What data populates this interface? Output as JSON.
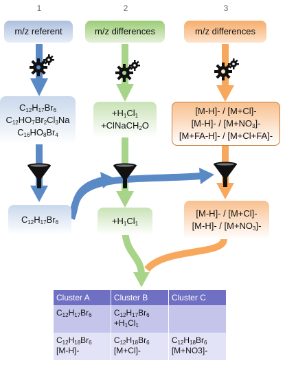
{
  "steps": [
    "1",
    "2",
    "3"
  ],
  "headers": {
    "col1": "m/z referent",
    "col2": "m/z differences",
    "col3": "m/z differences"
  },
  "col1": {
    "formulas": [
      [
        [
          "C",
          ""
        ],
        [
          "12",
          "sub"
        ],
        [
          "H",
          ""
        ],
        [
          "17",
          "sub"
        ],
        [
          "Br",
          ""
        ],
        [
          "6",
          "sub"
        ]
      ],
      [
        [
          "C",
          ""
        ],
        [
          "12",
          "sub"
        ],
        [
          "HO",
          ""
        ],
        [
          "7",
          "sub"
        ],
        [
          "Br",
          ""
        ],
        [
          "2",
          "sub"
        ],
        [
          "Cl",
          ""
        ],
        [
          "3",
          "sub"
        ],
        [
          "Na",
          ""
        ]
      ],
      [
        [
          "C",
          ""
        ],
        [
          "16",
          "sub"
        ],
        [
          "HO",
          ""
        ],
        [
          "8",
          "sub"
        ],
        [
          "Br",
          ""
        ],
        [
          "4",
          "sub"
        ]
      ]
    ],
    "filtered": [
      [
        "C",
        ""
      ],
      [
        "12",
        "sub"
      ],
      [
        "H",
        ""
      ],
      [
        "17",
        "sub"
      ],
      [
        "Br",
        ""
      ],
      [
        "6",
        "sub"
      ]
    ]
  },
  "col2": {
    "formulas": [
      [
        [
          "+H",
          ""
        ],
        [
          "1",
          "sub"
        ],
        [
          "Cl",
          ""
        ],
        [
          "1",
          "sub"
        ]
      ],
      [
        [
          "+ClNaCH",
          ""
        ],
        [
          "2",
          "sub"
        ],
        [
          "O",
          ""
        ]
      ]
    ],
    "filtered": [
      [
        "+H",
        ""
      ],
      [
        "1",
        "sub"
      ],
      [
        "Cl",
        ""
      ],
      [
        "1",
        "sub"
      ]
    ]
  },
  "col3": {
    "adducts": [
      "[M-H]- / [M+Cl]-",
      "[M-H]- / [M+NO3]-",
      "[M+FA-H]- / [M+Cl+FA]-"
    ],
    "adducts_rich": [
      [
        [
          "[M-H]- / [M+Cl]-",
          ""
        ]
      ],
      [
        [
          "[M-H]- / [M+NO",
          ""
        ],
        [
          "3",
          "sub"
        ],
        [
          "]-",
          ""
        ]
      ],
      [
        [
          "[M+FA-H]- / [M+Cl+FA]-",
          ""
        ]
      ]
    ],
    "filtered_rich": [
      [
        [
          "[M-H]- / [M+Cl]-",
          ""
        ]
      ],
      [
        [
          "[M-H]- / [M+NO",
          ""
        ],
        [
          "3",
          "sub"
        ],
        [
          "]-",
          ""
        ]
      ]
    ]
  },
  "table": {
    "headers": [
      "Cluster A",
      "Cluster B",
      "Cluster C"
    ],
    "rows": [
      [
        [
          [
            [
              "C",
              ""
            ],
            [
              "12",
              "sub"
            ],
            [
              "H",
              ""
            ],
            [
              "17",
              "sub"
            ],
            [
              "Br",
              ""
            ],
            [
              "6",
              "sub"
            ]
          ]
        ],
        [
          [
            [
              "C",
              ""
            ],
            [
              "12",
              "sub"
            ],
            [
              "H",
              ""
            ],
            [
              "17",
              "sub"
            ],
            [
              "Br",
              ""
            ],
            [
              "6",
              "sub"
            ]
          ],
          [
            [
              "+H",
              ""
            ],
            [
              "1",
              "sub"
            ],
            [
              "Cl",
              ""
            ],
            [
              "1",
              "sub"
            ]
          ]
        ],
        []
      ],
      [
        [
          [
            [
              "C",
              ""
            ],
            [
              "12",
              "sub"
            ],
            [
              "H",
              ""
            ],
            [
              "18",
              "sub"
            ],
            [
              "Br",
              ""
            ],
            [
              "6",
              "sub"
            ]
          ],
          [
            [
              "[M-H]-",
              ""
            ]
          ]
        ],
        [
          [
            [
              "C",
              ""
            ],
            [
              "12",
              "sub"
            ],
            [
              "H",
              ""
            ],
            [
              "18",
              "sub"
            ],
            [
              "Br",
              ""
            ],
            [
              "6",
              "sub"
            ]
          ],
          [
            [
              "[M+Cl]-",
              ""
            ]
          ]
        ],
        [
          [
            [
              "C",
              ""
            ],
            [
              "12",
              "sub"
            ],
            [
              "H",
              ""
            ],
            [
              "18",
              "sub"
            ],
            [
              "Br",
              ""
            ],
            [
              "6",
              "sub"
            ]
          ],
          [
            [
              "[M+NO3]-",
              ""
            ]
          ]
        ]
      ]
    ]
  },
  "colors": {
    "blue": "#5a8ac6",
    "green": "#9fd07c",
    "orange": "#f7a85c",
    "table_header": "#6f6fc4"
  },
  "icons": [
    "gears-icon",
    "funnel-icon"
  ]
}
